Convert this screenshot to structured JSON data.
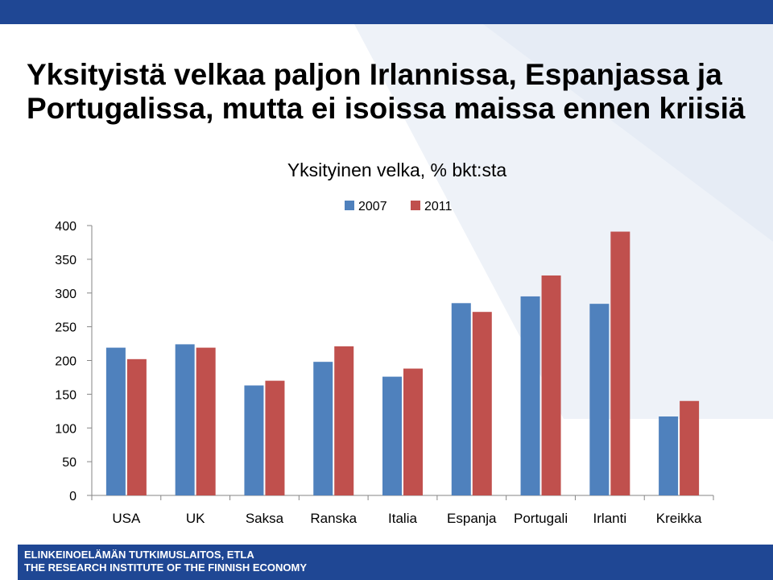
{
  "slide": {
    "title_line1": "Yksityistä velkaa paljon Irlannissa, Espanjassa ja",
    "title_line2": "Portugalissa, mutta ei isoissa maissa ennen kriisiä"
  },
  "footer": {
    "line1": "ELINKEINOELÄMÄN TUTKIMUSLAITOS, ETLA",
    "line2": "THE RESEARCH INSTITUTE OF THE FINNISH ECONOMY"
  },
  "colors": {
    "brand_blue": "#1f4794",
    "series_2007": "#4f81bd",
    "series_2011": "#c0504d"
  },
  "chart_data": {
    "type": "bar",
    "title": "Yksityinen velka, % bkt:sta",
    "categories": [
      "USA",
      "UK",
      "Saksa",
      "Ranska",
      "Italia",
      "Espanja",
      "Portugali",
      "Irlanti",
      "Kreikka"
    ],
    "series": [
      {
        "name": "2007",
        "color": "#4f81bd",
        "values": [
          219,
          224,
          163,
          198,
          176,
          285,
          295,
          284,
          117
        ]
      },
      {
        "name": "2011",
        "color": "#c0504d",
        "values": [
          202,
          219,
          170,
          221,
          188,
          272,
          326,
          391,
          140
        ]
      }
    ],
    "ylim": [
      0,
      400
    ],
    "yticks": [
      "0",
      "50",
      "100",
      "150",
      "200",
      "250",
      "300",
      "350",
      "400"
    ],
    "grid": false,
    "legend": "top-center"
  }
}
